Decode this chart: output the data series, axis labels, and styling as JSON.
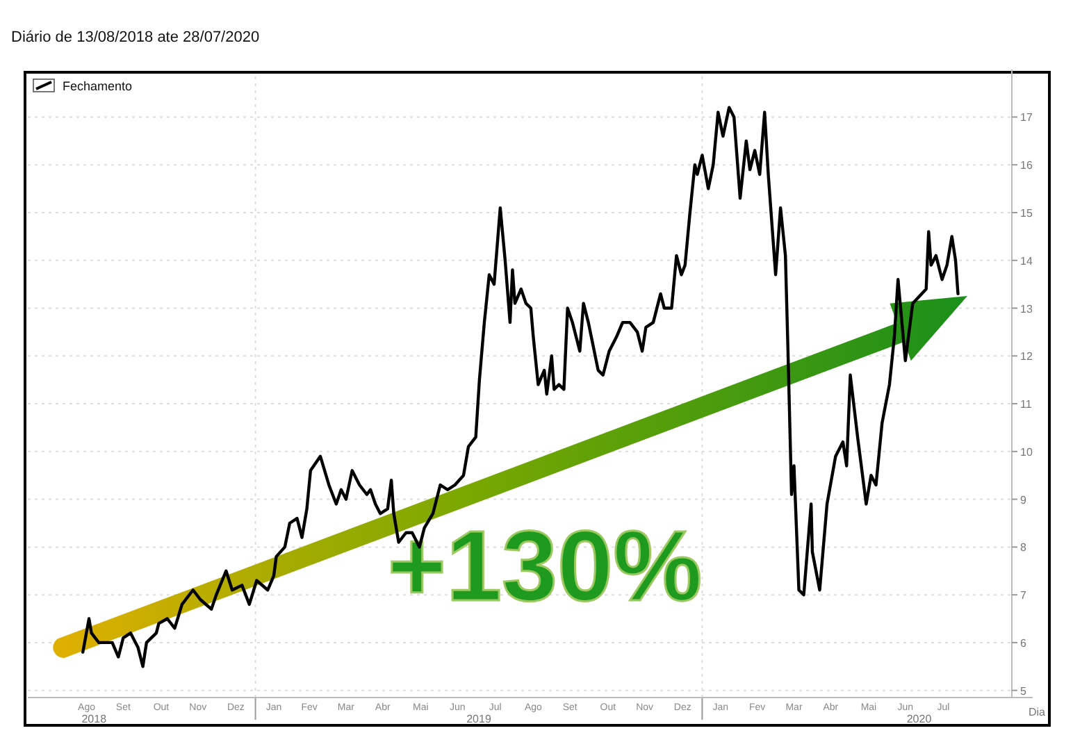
{
  "chart_data": {
    "type": "line",
    "title": "Diário de 13/08/2018 ate 28/07/2020",
    "xlabel": "Dia",
    "x": [
      "2018-08-13",
      "2018-08-18",
      "2018-08-20",
      "2018-08-26",
      "2018-09-06",
      "2018-09-11",
      "2018-09-15",
      "2018-09-21",
      "2018-09-27",
      "2018-10-01",
      "2018-10-04",
      "2018-10-12",
      "2018-10-14",
      "2018-10-21",
      "2018-10-27",
      "2018-11-02",
      "2018-11-11",
      "2018-11-17",
      "2018-11-26",
      "2018-11-30",
      "2018-12-08",
      "2018-12-13",
      "2018-12-21",
      "2018-12-27",
      "2019-01-02",
      "2019-01-11",
      "2019-01-16",
      "2019-01-18",
      "2019-01-25",
      "2019-01-29",
      "2019-02-04",
      "2019-02-08",
      "2019-02-12",
      "2019-02-15",
      "2019-02-23",
      "2019-03-02",
      "2019-03-08",
      "2019-03-12",
      "2019-03-16",
      "2019-03-21",
      "2019-03-27",
      "2019-04-02",
      "2019-04-05",
      "2019-04-09",
      "2019-04-13",
      "2019-04-19",
      "2019-04-22",
      "2019-04-24",
      "2019-04-28",
      "2019-05-04",
      "2019-05-09",
      "2019-05-15",
      "2019-05-19",
      "2019-05-26",
      "2019-06-01",
      "2019-06-07",
      "2019-06-13",
      "2019-06-20",
      "2019-06-24",
      "2019-06-30",
      "2019-07-03",
      "2019-07-07",
      "2019-07-11",
      "2019-07-15",
      "2019-07-20",
      "2019-07-24",
      "2019-07-28",
      "2019-07-30",
      "2019-08-01",
      "2019-08-06",
      "2019-08-10",
      "2019-08-14",
      "2019-08-16",
      "2019-08-20",
      "2019-08-25",
      "2019-08-27",
      "2019-08-31",
      "2019-09-02",
      "2019-09-06",
      "2019-09-10",
      "2019-09-13",
      "2019-09-17",
      "2019-09-23",
      "2019-09-26",
      "2019-09-30",
      "2019-10-04",
      "2019-10-08",
      "2019-10-12",
      "2019-10-17",
      "2019-10-23",
      "2019-10-28",
      "2019-11-03",
      "2019-11-09",
      "2019-11-13",
      "2019-11-16",
      "2019-11-22",
      "2019-11-28",
      "2019-12-01",
      "2019-12-07",
      "2019-12-11",
      "2019-12-15",
      "2019-12-18",
      "2019-12-22",
      "2019-12-26",
      "2019-12-28",
      "2020-01-01",
      "2020-01-06",
      "2020-01-10",
      "2020-01-14",
      "2020-01-18",
      "2020-01-23",
      "2020-01-27",
      "2020-02-01",
      "2020-02-06",
      "2020-02-09",
      "2020-02-13",
      "2020-02-17",
      "2020-02-21",
      "2020-02-24",
      "2020-03-01",
      "2020-03-05",
      "2020-03-09",
      "2020-03-11",
      "2020-03-14",
      "2020-03-16",
      "2020-03-20",
      "2020-03-24",
      "2020-03-30",
      "2020-03-31",
      "2020-04-06",
      "2020-04-12",
      "2020-04-19",
      "2020-04-25",
      "2020-04-28",
      "2020-05-01",
      "2020-05-07",
      "2020-05-10",
      "2020-05-14",
      "2020-05-18",
      "2020-05-22",
      "2020-05-27",
      "2020-06-02",
      "2020-06-06",
      "2020-06-09",
      "2020-06-15",
      "2020-06-21",
      "2020-07-02",
      "2020-07-04",
      "2020-07-06",
      "2020-07-10",
      "2020-07-15",
      "2020-07-19",
      "2020-07-23",
      "2020-07-26",
      "2020-07-28"
    ],
    "series": [
      {
        "name": "Fechamento",
        "color": "#000000",
        "values": [
          5.8,
          6.5,
          6.2,
          6.0,
          6.0,
          5.7,
          6.1,
          6.2,
          5.9,
          5.5,
          6.0,
          6.2,
          6.4,
          6.5,
          6.3,
          6.8,
          7.1,
          6.9,
          6.7,
          7.0,
          7.5,
          7.1,
          7.2,
          6.8,
          7.3,
          7.1,
          7.4,
          7.8,
          8.0,
          8.5,
          8.6,
          8.2,
          8.8,
          9.6,
          9.9,
          9.3,
          8.9,
          9.2,
          9.0,
          9.6,
          9.3,
          9.1,
          9.2,
          8.9,
          8.7,
          8.8,
          9.4,
          8.7,
          8.1,
          8.3,
          8.3,
          8.0,
          8.4,
          8.7,
          9.3,
          9.2,
          9.3,
          9.5,
          10.1,
          10.3,
          11.5,
          12.7,
          13.7,
          13.5,
          15.1,
          14.0,
          12.7,
          13.8,
          13.1,
          13.4,
          13.1,
          13.0,
          12.4,
          11.4,
          11.7,
          11.2,
          12.0,
          11.3,
          11.4,
          11.3,
          13.0,
          12.7,
          12.1,
          13.1,
          12.7,
          12.2,
          11.7,
          11.6,
          12.1,
          12.4,
          12.7,
          12.7,
          12.5,
          12.1,
          12.6,
          12.7,
          13.3,
          13.0,
          13.0,
          14.1,
          13.7,
          13.9,
          15.0,
          16.0,
          15.8,
          16.2,
          15.5,
          16.0,
          17.1,
          16.6,
          17.2,
          17.0,
          15.3,
          16.5,
          15.9,
          16.3,
          15.8,
          17.1,
          15.8,
          13.7,
          15.1,
          14.1,
          12.2,
          9.1,
          9.7,
          7.1,
          7.0,
          8.9,
          7.9,
          7.1,
          8.9,
          9.9,
          10.2,
          9.7,
          11.6,
          10.3,
          9.7,
          8.9,
          9.5,
          9.3,
          10.6,
          11.4,
          12.4,
          13.6,
          11.9,
          13.1,
          13.4,
          14.6,
          13.9,
          14.1,
          13.6,
          13.9,
          14.5,
          14.0,
          13.3
        ]
      }
    ],
    "xlim": [
      "2018-06-29",
      "2020-09-10"
    ],
    "xticks": [
      {
        "value": "2018-08-16",
        "label": "Ago"
      },
      {
        "value": "2018-09-15",
        "label": "Set"
      },
      {
        "value": "2018-10-16",
        "label": "Out"
      },
      {
        "value": "2018-11-15",
        "label": "Nov"
      },
      {
        "value": "2018-12-16",
        "label": "Dez"
      },
      {
        "value": "2019-01-16",
        "label": "Jan"
      },
      {
        "value": "2019-02-14",
        "label": "Fev"
      },
      {
        "value": "2019-03-16",
        "label": "Mar"
      },
      {
        "value": "2019-04-15",
        "label": "Abr"
      },
      {
        "value": "2019-05-16",
        "label": "Mai"
      },
      {
        "value": "2019-06-15",
        "label": "Jun"
      },
      {
        "value": "2019-07-16",
        "label": "Jul"
      },
      {
        "value": "2019-08-16",
        "label": "Ago"
      },
      {
        "value": "2019-09-15",
        "label": "Set"
      },
      {
        "value": "2019-10-16",
        "label": "Out"
      },
      {
        "value": "2019-11-15",
        "label": "Nov"
      },
      {
        "value": "2019-12-16",
        "label": "Dez"
      },
      {
        "value": "2020-01-16",
        "label": "Jan"
      },
      {
        "value": "2020-02-15",
        "label": "Fev"
      },
      {
        "value": "2020-03-16",
        "label": "Mar"
      },
      {
        "value": "2020-04-15",
        "label": "Abr"
      },
      {
        "value": "2020-05-16",
        "label": "Mai"
      },
      {
        "value": "2020-06-15",
        "label": "Jun"
      },
      {
        "value": "2020-07-16",
        "label": "Jul"
      }
    ],
    "ylim": [
      4.85,
      17.85
    ],
    "yticks": [
      5,
      6,
      7,
      8,
      9,
      10,
      11,
      12,
      13,
      14,
      15,
      16,
      17
    ],
    "grid": "y",
    "legend": "top left",
    "line_style": "solid",
    "marker": "none",
    "ref_lines": [
      {
        "axis": "x",
        "value": "2019-01-01",
        "color": "#dddddd",
        "line_style": "dotted"
      },
      {
        "axis": "x",
        "value": "2020-01-01",
        "color": "#dddddd",
        "line_style": "dotted"
      }
    ],
    "annotations": [
      "2018",
      "2019",
      "2020",
      "+130%"
    ]
  }
}
